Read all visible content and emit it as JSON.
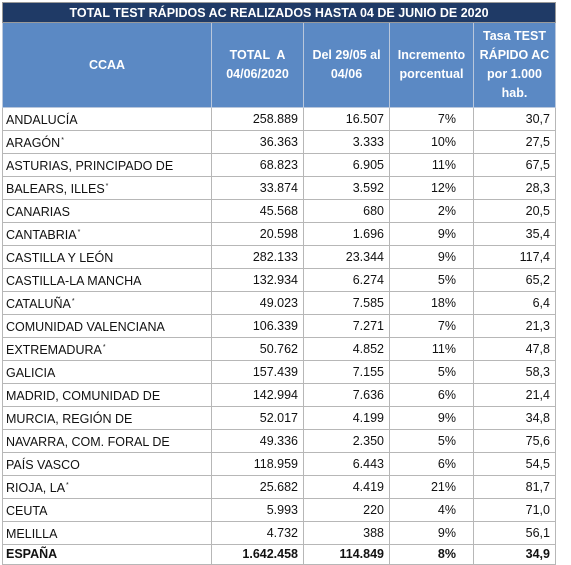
{
  "title": "TOTAL TEST RÁPIDOS AC REALIZADOS HASTA 04 DE JUNIO DE 2020",
  "headers": {
    "ccaa": "CCAA",
    "total_l1": "TOTAL  A",
    "total_l2": "04/06/2020",
    "del_l1": "Del 29/05 al",
    "del_l2": "04/06",
    "inc_l1": "Incremento",
    "inc_l2": "porcentual",
    "tasa_l1": "Tasa TEST",
    "tasa_l2": "RÁPIDO AC",
    "tasa_l3": "por 1.000",
    "tasa_l4": "hab."
  },
  "rows": [
    {
      "name": "ANDALUCÍA",
      "mark": "",
      "total": "258.889",
      "week": "16.507",
      "pct": "7%",
      "rate": "30,7"
    },
    {
      "name": "ARAGÓN",
      "mark": "*",
      "total": "36.363",
      "week": "3.333",
      "pct": "10%",
      "rate": "27,5"
    },
    {
      "name": "ASTURIAS, PRINCIPADO DE",
      "mark": "",
      "total": "68.823",
      "week": "6.905",
      "pct": "11%",
      "rate": "67,5"
    },
    {
      "name": "BALEARS, ILLES",
      "mark": "*",
      "total": "33.874",
      "week": "3.592",
      "pct": "12%",
      "rate": "28,3"
    },
    {
      "name": "CANARIAS",
      "mark": "",
      "total": "45.568",
      "week": "680",
      "pct": "2%",
      "rate": "20,5"
    },
    {
      "name": "CANTABRIA",
      "mark": "*",
      "total": "20.598",
      "week": "1.696",
      "pct": "9%",
      "rate": "35,4"
    },
    {
      "name": "CASTILLA Y LEÓN",
      "mark": "",
      "total": "282.133",
      "week": "23.344",
      "pct": "9%",
      "rate": "117,4"
    },
    {
      "name": "CASTILLA-LA MANCHA",
      "mark": "",
      "total": "132.934",
      "week": "6.274",
      "pct": "5%",
      "rate": "65,2"
    },
    {
      "name": "CATALUÑA",
      "mark": "*",
      "total": "49.023",
      "week": "7.585",
      "pct": "18%",
      "rate": "6,4"
    },
    {
      "name": "COMUNIDAD VALENCIANA",
      "mark": "",
      "total": "106.339",
      "week": "7.271",
      "pct": "7%",
      "rate": "21,3"
    },
    {
      "name": "EXTREMADURA",
      "mark": "*",
      "total": "50.762",
      "week": "4.852",
      "pct": "11%",
      "rate": "47,8"
    },
    {
      "name": "GALICIA",
      "mark": "",
      "total": "157.439",
      "week": "7.155",
      "pct": "5%",
      "rate": "58,3"
    },
    {
      "name": "MADRID, COMUNIDAD DE",
      "mark": "",
      "total": "142.994",
      "week": "7.636",
      "pct": "6%",
      "rate": "21,4"
    },
    {
      "name": "MURCIA, REGIÓN DE",
      "mark": "",
      "total": "52.017",
      "week": "4.199",
      "pct": "9%",
      "rate": "34,8"
    },
    {
      "name": "NAVARRA, COM. FORAL DE",
      "mark": "",
      "total": "49.336",
      "week": "2.350",
      "pct": "5%",
      "rate": "75,6"
    },
    {
      "name": "PAÍS VASCO",
      "mark": "",
      "total": "118.959",
      "week": "6.443",
      "pct": "6%",
      "rate": "54,5"
    },
    {
      "name": "RIOJA, LA",
      "mark": "*",
      "total": "25.682",
      "week": "4.419",
      "pct": "21%",
      "rate": "81,7"
    },
    {
      "name": "CEUTA",
      "mark": "",
      "total": "5.993",
      "week": "220",
      "pct": "4%",
      "rate": "71,0"
    },
    {
      "name": "MELILLA",
      "mark": "",
      "total": "4.732",
      "week": "388",
      "pct": "9%",
      "rate": "56,1"
    }
  ],
  "total_row": {
    "name": "ESPAÑA",
    "total": "1.642.458",
    "week": "114.849",
    "pct": "8%",
    "rate": "34,9"
  },
  "colors": {
    "title_bg": "#1f3a66",
    "header_bg": "#5b89c4",
    "header_text": "#ffffff",
    "grid": "#b7b7b7"
  }
}
